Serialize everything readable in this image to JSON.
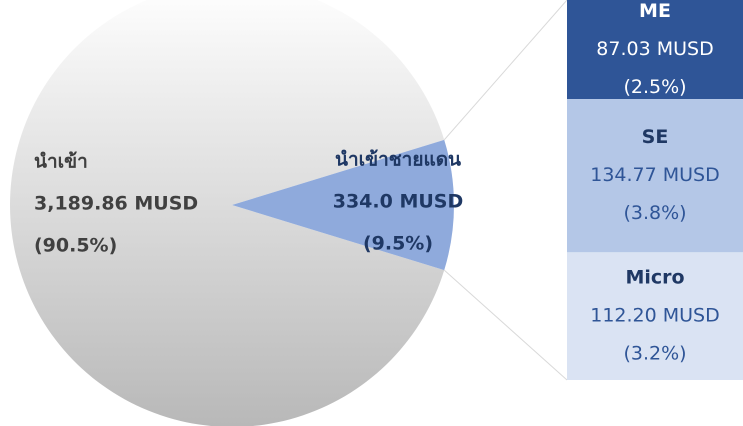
{
  "chart_data": {
    "type": "pie",
    "categories": [
      "นำเข้า",
      "นำเข้าชายแดน"
    ],
    "values": [
      3189.86,
      334.0
    ],
    "value_labels": [
      "3,189.86 MUSD",
      "334.0 MUSD"
    ],
    "percents": [
      90.5,
      9.5
    ],
    "percent_labels": [
      "(90.5%)",
      "(9.5%)"
    ],
    "colors": [
      "#d0d0d0",
      "#8faadc"
    ],
    "breakdown": {
      "categories": [
        "ME",
        "SE",
        "Micro"
      ],
      "values": [
        87.03,
        134.77,
        112.2
      ],
      "value_labels": [
        "87.03 MUSD",
        "134.77 MUSD",
        "112.20 MUSD"
      ],
      "percents": [
        2.5,
        3.8,
        3.2
      ],
      "percent_labels": [
        "(2.5%)",
        "(3.8%)",
        "(3.2%)"
      ],
      "colors": [
        "#2f5597",
        "#b4c7e7",
        "#dae3f3"
      ]
    }
  }
}
